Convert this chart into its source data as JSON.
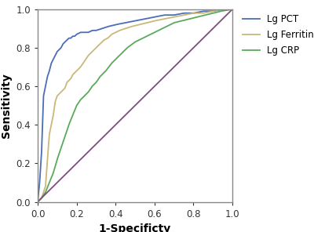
{
  "xlabel": "1-Specificty",
  "ylabel": "Sensitivity",
  "xlim": [
    0.0,
    1.0
  ],
  "ylim": [
    0.0,
    1.0
  ],
  "xticks": [
    0.0,
    0.2,
    0.4,
    0.6,
    0.8,
    1.0
  ],
  "yticks": [
    0.0,
    0.2,
    0.4,
    0.6,
    0.8,
    1.0
  ],
  "legend_labels": [
    "Lg PCT",
    "Lg Ferritin",
    "Lg CRP"
  ],
  "line_colors": [
    "#4b6cb7",
    "#c8b87a",
    "#5aaa5a"
  ],
  "diagonal_color": "#7b4f7b",
  "background_color": "#ffffff",
  "figsize": [
    4.0,
    2.96
  ],
  "dpi": 100,
  "pct_fpr": [
    0.0,
    0.01,
    0.02,
    0.03,
    0.04,
    0.05,
    0.06,
    0.07,
    0.08,
    0.09,
    0.1,
    0.11,
    0.12,
    0.13,
    0.14,
    0.15,
    0.16,
    0.17,
    0.18,
    0.19,
    0.2,
    0.22,
    0.24,
    0.26,
    0.28,
    0.3,
    0.33,
    0.36,
    0.4,
    0.45,
    0.5,
    0.55,
    0.6,
    0.65,
    0.7,
    0.75,
    0.8,
    0.85,
    0.9,
    0.95,
    1.0
  ],
  "pct_tpr": [
    0.0,
    0.1,
    0.26,
    0.55,
    0.6,
    0.65,
    0.68,
    0.72,
    0.74,
    0.76,
    0.78,
    0.79,
    0.8,
    0.82,
    0.83,
    0.84,
    0.85,
    0.85,
    0.86,
    0.86,
    0.87,
    0.88,
    0.88,
    0.88,
    0.89,
    0.89,
    0.9,
    0.91,
    0.92,
    0.93,
    0.94,
    0.95,
    0.96,
    0.97,
    0.97,
    0.98,
    0.98,
    0.99,
    0.99,
    1.0,
    1.0
  ],
  "ferritin_fpr": [
    0.0,
    0.02,
    0.04,
    0.05,
    0.06,
    0.08,
    0.09,
    0.1,
    0.12,
    0.14,
    0.15,
    0.17,
    0.18,
    0.2,
    0.22,
    0.24,
    0.26,
    0.28,
    0.3,
    0.32,
    0.34,
    0.36,
    0.38,
    0.4,
    0.42,
    0.45,
    0.48,
    0.52,
    0.56,
    0.6,
    0.65,
    0.7,
    0.75,
    0.8,
    0.85,
    0.9,
    0.95,
    1.0
  ],
  "ferritin_tpr": [
    0.0,
    0.02,
    0.08,
    0.22,
    0.35,
    0.45,
    0.52,
    0.55,
    0.57,
    0.59,
    0.62,
    0.64,
    0.66,
    0.68,
    0.7,
    0.73,
    0.76,
    0.78,
    0.8,
    0.82,
    0.84,
    0.85,
    0.87,
    0.88,
    0.89,
    0.9,
    0.91,
    0.92,
    0.93,
    0.94,
    0.95,
    0.96,
    0.97,
    0.98,
    0.98,
    0.99,
    1.0,
    1.0
  ],
  "crp_fpr": [
    0.0,
    0.02,
    0.04,
    0.06,
    0.08,
    0.1,
    0.12,
    0.14,
    0.16,
    0.18,
    0.2,
    0.22,
    0.24,
    0.26,
    0.28,
    0.3,
    0.32,
    0.35,
    0.38,
    0.4,
    0.43,
    0.46,
    0.5,
    0.54,
    0.58,
    0.62,
    0.66,
    0.7,
    0.74,
    0.78,
    0.82,
    0.86,
    0.9,
    0.94,
    1.0
  ],
  "crp_tpr": [
    0.0,
    0.02,
    0.05,
    0.1,
    0.15,
    0.22,
    0.28,
    0.34,
    0.4,
    0.45,
    0.5,
    0.53,
    0.55,
    0.57,
    0.6,
    0.62,
    0.65,
    0.68,
    0.72,
    0.74,
    0.77,
    0.8,
    0.83,
    0.85,
    0.87,
    0.89,
    0.91,
    0.93,
    0.94,
    0.95,
    0.96,
    0.97,
    0.98,
    0.99,
    1.0
  ]
}
